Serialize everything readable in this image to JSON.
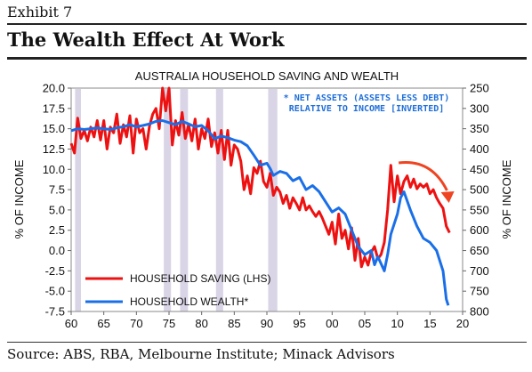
{
  "exhibit_label": "Exhibit 7",
  "headline": "The Wealth Effect At Work",
  "source": "Source: ABS, RBA, Melbourne Institute; Minack Advisors",
  "colors": {
    "saving": "#ee1111",
    "wealth": "#1a6fe8",
    "recession_shade": "#d9d4e6",
    "arrow": "#ee4422",
    "note": "#1f6fd9"
  },
  "chart_data": {
    "type": "line",
    "title": "AUSTRALIA HOUSEHOLD SAVING AND WEALTH",
    "ylabel_left": "% OF INCOME",
    "ylabel_right": "% OF INCOME",
    "note_line1": "* NET ASSETS (ASSETS LESS DEBT)",
    "note_line2": "RELATIVE TO INCOME [INVERTED]",
    "xlim": [
      1960,
      2020
    ],
    "ylim_left": [
      -7.5,
      20
    ],
    "ylim_right": [
      800,
      250
    ],
    "right_axis_inverted": true,
    "x_ticks": [
      "60",
      "65",
      "70",
      "75",
      "80",
      "85",
      "90",
      "95",
      "00",
      "05",
      "10",
      "15",
      "20"
    ],
    "y_left_ticks": [
      "20.0",
      "17.5",
      "15.0",
      "12.5",
      "10.0",
      "7.5",
      "5.0",
      "2.5",
      "0.0",
      "-2.5",
      "-5.0",
      "-7.5"
    ],
    "y_right_ticks": [
      "250",
      "300",
      "350",
      "400",
      "450",
      "500",
      "550",
      "600",
      "650",
      "700",
      "750",
      "800"
    ],
    "grid": false,
    "recession_shading": [
      [
        1960.6,
        1961.5
      ],
      [
        1974.2,
        1975.3
      ],
      [
        1976.7,
        1977.9
      ],
      [
        1982.2,
        1983.3
      ],
      [
        1990.2,
        1991.6
      ]
    ],
    "legend": {
      "placement": "bottom-left",
      "entries": [
        "HOUSEHOLD SAVING (LHS)",
        "HOUSEHOLD WEALTH*"
      ]
    },
    "series": [
      {
        "name": "HOUSEHOLD SAVING (LHS)",
        "axis": "left",
        "x": [
          1960,
          1960.5,
          1961,
          1961.5,
          1962,
          1962.5,
          1963,
          1963.5,
          1964,
          1964.5,
          1965,
          1965.5,
          1966,
          1966.5,
          1967,
          1967.5,
          1968,
          1968.5,
          1969,
          1969.5,
          1970,
          1970.5,
          1971,
          1971.5,
          1972,
          1972.5,
          1973,
          1973.5,
          1974,
          1974.5,
          1975,
          1975.5,
          1976,
          1976.5,
          1977,
          1977.5,
          1978,
          1978.5,
          1979,
          1979.5,
          1980,
          1980.5,
          1981,
          1981.5,
          1982,
          1982.5,
          1983,
          1983.5,
          1984,
          1984.5,
          1985,
          1985.5,
          1986,
          1986.5,
          1987,
          1987.5,
          1988,
          1988.5,
          1989,
          1989.5,
          1990,
          1990.5,
          1991,
          1991.5,
          1992,
          1992.5,
          1993,
          1993.5,
          1994,
          1994.5,
          1995,
          1995.5,
          1996,
          1996.5,
          1997,
          1997.5,
          1998,
          1998.5,
          1999,
          1999.5,
          2000,
          2000.5,
          2001,
          2001.5,
          2002,
          2002.5,
          2003,
          2003.5,
          2004,
          2004.5,
          2005,
          2005.5,
          2006,
          2006.5,
          2007,
          2007.5,
          2008,
          2008.5,
          2009,
          2009.5,
          2010,
          2010.5,
          2011,
          2011.5,
          2012,
          2012.5,
          2013,
          2013.5,
          2014,
          2014.5,
          2015,
          2015.5,
          2016,
          2016.5,
          2017,
          2017.5,
          2018
        ],
        "values": [
          13.2,
          12.0,
          16.3,
          13.8,
          14.8,
          13.5,
          15.2,
          14.0,
          16.0,
          13.6,
          16.0,
          12.5,
          15.2,
          14.5,
          16.8,
          13.2,
          15.5,
          14.0,
          16.6,
          12.0,
          16.2,
          14.5,
          15.0,
          12.5,
          15.3,
          16.8,
          17.5,
          15.0,
          20.0,
          17.2,
          20.0,
          13.0,
          16.0,
          14.2,
          17.0,
          13.8,
          15.5,
          13.5,
          16.2,
          12.5,
          15.0,
          13.8,
          16.2,
          12.8,
          14.5,
          12.0,
          14.8,
          11.2,
          14.8,
          10.5,
          13.0,
          12.5,
          11.0,
          7.5,
          9.2,
          7.0,
          10.2,
          9.5,
          11.0,
          8.5,
          7.8,
          9.5,
          6.8,
          7.8,
          7.2,
          5.8,
          6.8,
          5.2,
          6.5,
          5.8,
          5.0,
          6.5,
          5.0,
          5.5,
          4.8,
          4.2,
          4.8,
          4.0,
          3.0,
          2.0,
          3.5,
          0.8,
          4.5,
          1.5,
          2.5,
          0.2,
          2.8,
          -1.2,
          1.5,
          -2.0,
          -0.8,
          -1.8,
          -0.2,
          0.5,
          -1.0,
          -0.5,
          1.0,
          5.0,
          10.5,
          6.0,
          9.2,
          7.0,
          8.5,
          9.2,
          7.8,
          8.8,
          7.6,
          8.2,
          7.8,
          8.2,
          7.0,
          7.5,
          6.5,
          5.8,
          5.2,
          3.0,
          2.2
        ]
      },
      {
        "name": "HOUSEHOLD WEALTH*",
        "axis": "right",
        "x": [
          1960,
          1961,
          1962,
          1963,
          1964,
          1965,
          1966,
          1967,
          1968,
          1969,
          1970,
          1971,
          1972,
          1973,
          1974,
          1975,
          1976,
          1977,
          1978,
          1979,
          1980,
          1981,
          1982,
          1983,
          1984,
          1985,
          1986,
          1987,
          1988,
          1989,
          1990,
          1990.5,
          1991,
          1992,
          1993,
          1994,
          1995,
          1996,
          1997,
          1998,
          1999,
          2000,
          2001,
          2002,
          2003,
          2004,
          2005,
          2006,
          2006.5,
          2007,
          2008,
          2008.5,
          2009,
          2010,
          2010.5,
          2011,
          2012,
          2013,
          2014,
          2015,
          2016,
          2017,
          2017.5,
          2017.8
        ],
        "values": [
          355,
          350,
          352,
          350,
          348,
          350,
          352,
          348,
          345,
          340,
          345,
          342,
          338,
          332,
          330,
          335,
          340,
          332,
          338,
          345,
          342,
          355,
          375,
          368,
          372,
          378,
          382,
          392,
          415,
          440,
          435,
          448,
          465,
          455,
          460,
          478,
          470,
          500,
          490,
          505,
          530,
          555,
          545,
          560,
          600,
          640,
          660,
          650,
          685,
          665,
          700,
          660,
          610,
          560,
          520,
          505,
          550,
          590,
          620,
          630,
          650,
          700,
          770,
          785
        ]
      }
    ]
  }
}
